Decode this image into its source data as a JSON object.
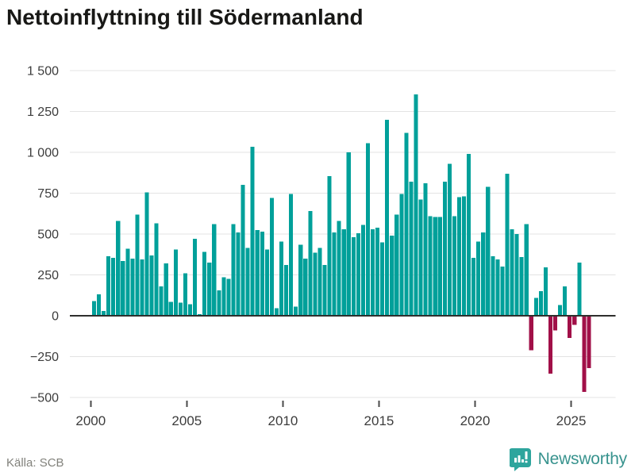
{
  "title": "Nettoinflyttning till Södermanland",
  "footer": {
    "source": "Källa: SCB",
    "brand": "Newsworthy"
  },
  "colors": {
    "positive": "#00a09a",
    "negative": "#a11048",
    "grid": "#e3e3e3",
    "baseline": "#2f2f2d",
    "axis_text": "#3c3c3c",
    "tick_mark": "#4a4a4a",
    "title_text": "#181816",
    "source_text": "#82827c",
    "logo_badge": "#2ea59d",
    "logo_text": "#38938e"
  },
  "y_axis": {
    "ticks": [
      {
        "value": 1500,
        "label": "1 500"
      },
      {
        "value": 1250,
        "label": "1 250"
      },
      {
        "value": 1000,
        "label": "1 000"
      },
      {
        "value": 750,
        "label": "750"
      },
      {
        "value": 500,
        "label": "500"
      },
      {
        "value": 250,
        "label": "250"
      },
      {
        "value": 0,
        "label": "0"
      },
      {
        "value": -250,
        "label": "−250"
      },
      {
        "value": -500,
        "label": "−500"
      }
    ]
  },
  "x_axis": {
    "ticks": [
      {
        "year": 2000,
        "label": "2000"
      },
      {
        "year": 2005,
        "label": "2005"
      },
      {
        "year": 2010,
        "label": "2010"
      },
      {
        "year": 2015,
        "label": "2015"
      },
      {
        "year": 2020,
        "label": "2020"
      },
      {
        "year": 2025,
        "label": "2025"
      }
    ]
  },
  "chart_data": {
    "type": "bar",
    "title": "Nettoinflyttning till Södermanland",
    "frequency": "quarterly",
    "x_start": "2000Q1",
    "x_end": "2025Q4",
    "ylim": [
      -500,
      1500
    ],
    "grid": true,
    "color_rule": "teal when value >= 0, crimson when value < 0",
    "categories": [
      "2000Q1",
      "2000Q2",
      "2000Q3",
      "2000Q4",
      "2001Q1",
      "2001Q2",
      "2001Q3",
      "2001Q4",
      "2002Q1",
      "2002Q2",
      "2002Q3",
      "2002Q4",
      "2003Q1",
      "2003Q2",
      "2003Q3",
      "2003Q4",
      "2004Q1",
      "2004Q2",
      "2004Q3",
      "2004Q4",
      "2005Q1",
      "2005Q2",
      "2005Q3",
      "2005Q4",
      "2006Q1",
      "2006Q2",
      "2006Q3",
      "2006Q4",
      "2007Q1",
      "2007Q2",
      "2007Q3",
      "2007Q4",
      "2008Q1",
      "2008Q2",
      "2008Q3",
      "2008Q4",
      "2009Q1",
      "2009Q2",
      "2009Q3",
      "2009Q4",
      "2010Q1",
      "2010Q2",
      "2010Q3",
      "2010Q4",
      "2011Q1",
      "2011Q2",
      "2011Q3",
      "2011Q4",
      "2012Q1",
      "2012Q2",
      "2012Q3",
      "2012Q4",
      "2013Q1",
      "2013Q2",
      "2013Q3",
      "2013Q4",
      "2014Q1",
      "2014Q2",
      "2014Q3",
      "2014Q4",
      "2015Q1",
      "2015Q2",
      "2015Q3",
      "2015Q4",
      "2016Q1",
      "2016Q2",
      "2016Q3",
      "2016Q4",
      "2017Q1",
      "2017Q2",
      "2017Q3",
      "2017Q4",
      "2018Q1",
      "2018Q2",
      "2018Q3",
      "2018Q4",
      "2019Q1",
      "2019Q2",
      "2019Q3",
      "2019Q4",
      "2020Q1",
      "2020Q2",
      "2020Q3",
      "2020Q4",
      "2021Q1",
      "2021Q2",
      "2021Q3",
      "2021Q4",
      "2022Q1",
      "2022Q2",
      "2022Q3",
      "2022Q4",
      "2023Q1",
      "2023Q2",
      "2023Q3",
      "2023Q4",
      "2024Q1",
      "2024Q2",
      "2024Q3",
      "2024Q4",
      "2025Q1",
      "2025Q2",
      "2025Q3",
      "2025Q4"
    ],
    "values": [
      90,
      130,
      30,
      365,
      355,
      580,
      335,
      410,
      350,
      620,
      345,
      755,
      370,
      565,
      180,
      320,
      85,
      405,
      80,
      260,
      70,
      470,
      10,
      390,
      325,
      560,
      155,
      235,
      225,
      560,
      510,
      800,
      415,
      1035,
      525,
      515,
      405,
      720,
      45,
      455,
      310,
      745,
      55,
      435,
      350,
      640,
      385,
      415,
      310,
      855,
      510,
      580,
      530,
      1000,
      480,
      505,
      555,
      1055,
      530,
      540,
      450,
      1200,
      490,
      620,
      745,
      1120,
      820,
      1355,
      710,
      810,
      610,
      605,
      605,
      820,
      930,
      610,
      725,
      730,
      990,
      355,
      455,
      510,
      790,
      365,
      345,
      300,
      870,
      530,
      500,
      360,
      560,
      -210,
      110,
      150,
      295,
      -355,
      -90,
      65,
      180,
      -135,
      -55,
      325,
      -465,
      -320
    ]
  }
}
